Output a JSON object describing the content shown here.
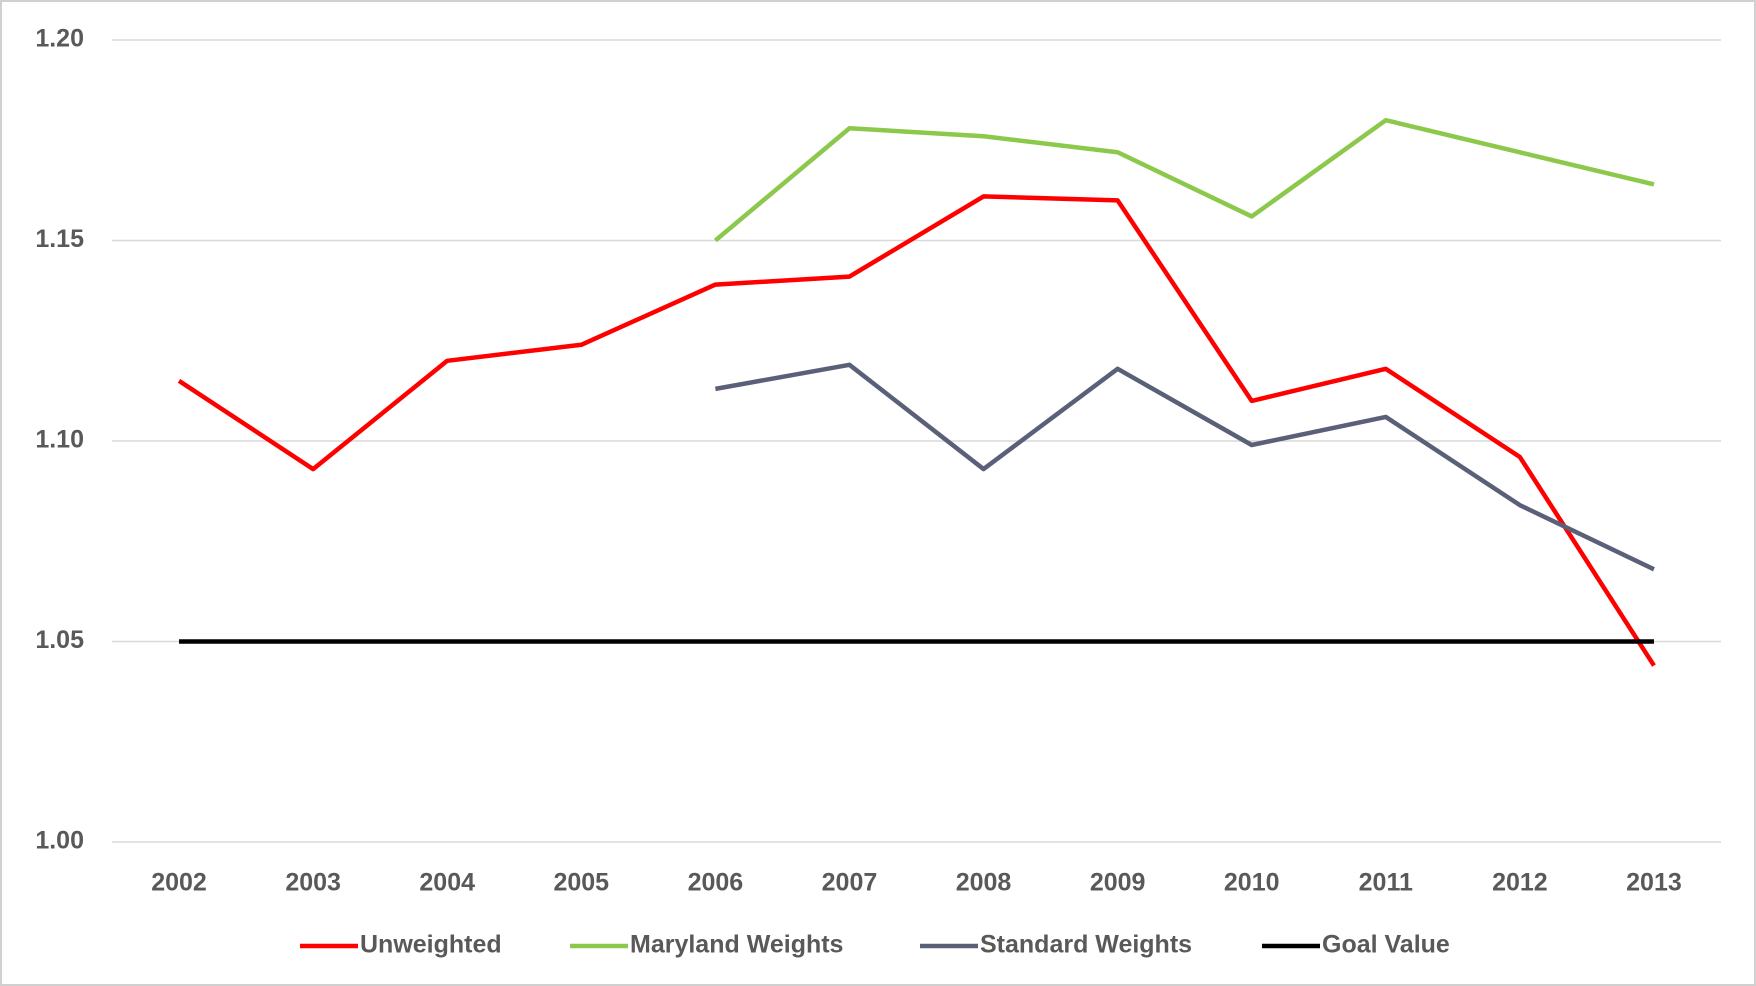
{
  "chart_data": {
    "type": "line",
    "categories": [
      "2002",
      "2003",
      "2004",
      "2005",
      "2006",
      "2007",
      "2008",
      "2009",
      "2010",
      "2011",
      "2012",
      "2013"
    ],
    "series": [
      {
        "name": "Unweighted",
        "color": "#ff0000",
        "values": [
          1.115,
          1.093,
          1.12,
          1.124,
          1.139,
          1.141,
          1.161,
          1.16,
          1.11,
          1.118,
          1.096,
          1.044
        ]
      },
      {
        "name": "Maryland Weights",
        "color": "#8cc84b",
        "values": [
          null,
          null,
          null,
          null,
          1.15,
          1.178,
          1.176,
          1.172,
          1.156,
          1.18,
          1.172,
          1.164
        ]
      },
      {
        "name": "Standard Weights",
        "color": "#5b6079",
        "values": [
          null,
          null,
          null,
          null,
          1.113,
          1.119,
          1.093,
          1.118,
          1.099,
          1.106,
          1.084,
          1.068
        ]
      },
      {
        "name": "Goal Value",
        "color": "#000000",
        "values": [
          1.05,
          1.05,
          1.05,
          1.05,
          1.05,
          1.05,
          1.05,
          1.05,
          1.05,
          1.05,
          1.05,
          1.05
        ]
      }
    ],
    "ylim": [
      1.0,
      1.2
    ],
    "yticks": [
      {
        "value": 1.0,
        "label": "1.00"
      },
      {
        "value": 1.05,
        "label": "1.05"
      },
      {
        "value": 1.1,
        "label": "1.10"
      },
      {
        "value": 1.15,
        "label": "1.15"
      },
      {
        "value": 1.2,
        "label": "1.20"
      }
    ],
    "grid": true,
    "legend": "bottom"
  }
}
